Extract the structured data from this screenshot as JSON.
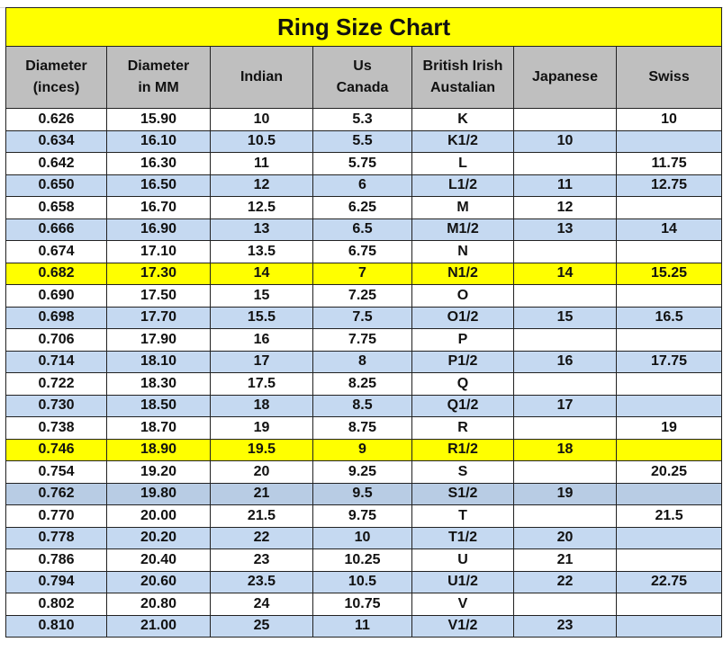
{
  "title": "Ring Size Chart",
  "colors": {
    "title_bg": "#ffff00",
    "header_bg": "#bfbfbf",
    "band_blue": "#c5d9f1",
    "highlight_yellow": "#ffff00"
  },
  "columns": [
    "Diameter\n(inces)",
    "Diameter\nin MM",
    "Indian",
    "Us\nCanada",
    "British Irish\nAustalian",
    "Japanese",
    "Swiss"
  ],
  "rows": [
    {
      "style": "white",
      "cells": [
        "0.626",
        "15.90",
        "10",
        "5.3",
        "K",
        "",
        "10"
      ]
    },
    {
      "style": "blue",
      "cells": [
        "0.634",
        "16.10",
        "10.5",
        "5.5",
        "K1/2",
        "10",
        ""
      ]
    },
    {
      "style": "white",
      "cells": [
        "0.642",
        "16.30",
        "11",
        "5.75",
        "L",
        "",
        "11.75"
      ]
    },
    {
      "style": "blue",
      "cells": [
        "0.650",
        "16.50",
        "12",
        "6",
        "L1/2",
        "11",
        "12.75"
      ]
    },
    {
      "style": "white",
      "cells": [
        "0.658",
        "16.70",
        "12.5",
        "6.25",
        "M",
        "12",
        ""
      ]
    },
    {
      "style": "blue",
      "cells": [
        "0.666",
        "16.90",
        "13",
        "6.5",
        "M1/2",
        "13",
        "14"
      ]
    },
    {
      "style": "white",
      "cells": [
        "0.674",
        "17.10",
        "13.5",
        "6.75",
        "N",
        "",
        ""
      ]
    },
    {
      "style": "yellow",
      "cells": [
        "0.682",
        "17.30",
        "14",
        "7",
        "N1/2",
        "14",
        "15.25"
      ]
    },
    {
      "style": "white",
      "cells": [
        "0.690",
        "17.50",
        "15",
        "7.25",
        "O",
        "",
        ""
      ]
    },
    {
      "style": "blue",
      "cells": [
        "0.698",
        "17.70",
        "15.5",
        "7.5",
        "O1/2",
        "15",
        "16.5"
      ]
    },
    {
      "style": "white",
      "cells": [
        "0.706",
        "17.90",
        "16",
        "7.75",
        "P",
        "",
        ""
      ]
    },
    {
      "style": "blue",
      "cells": [
        "0.714",
        "18.10",
        "17",
        "8",
        "P1/2",
        "16",
        "17.75"
      ]
    },
    {
      "style": "white",
      "cells": [
        "0.722",
        "18.30",
        "17.5",
        "8.25",
        "Q",
        "",
        ""
      ]
    },
    {
      "style": "blue",
      "cells": [
        "0.730",
        "18.50",
        "18",
        "8.5",
        "Q1/2",
        "17",
        ""
      ]
    },
    {
      "style": "white",
      "cells": [
        "0.738",
        "18.70",
        "19",
        "8.75",
        "R",
        "",
        "19"
      ]
    },
    {
      "style": "yellow",
      "cells": [
        "0.746",
        "18.90",
        "19.5",
        "9",
        "R1/2",
        "18",
        ""
      ]
    },
    {
      "style": "white",
      "cells": [
        "0.754",
        "19.20",
        "20",
        "9.25",
        "S",
        "",
        "20.25"
      ]
    },
    {
      "style": "blue-dark",
      "cells": [
        "0.762",
        "19.80",
        "21",
        "9.5",
        "S1/2",
        "19",
        ""
      ]
    },
    {
      "style": "white",
      "cells": [
        "0.770",
        "20.00",
        "21.5",
        "9.75",
        "T",
        "",
        "21.5"
      ]
    },
    {
      "style": "blue",
      "cells": [
        "0.778",
        "20.20",
        "22",
        "10",
        "T1/2",
        "20",
        ""
      ]
    },
    {
      "style": "white",
      "cells": [
        "0.786",
        "20.40",
        "23",
        "10.25",
        "U",
        "21",
        ""
      ]
    },
    {
      "style": "blue",
      "cells": [
        "0.794",
        "20.60",
        "23.5",
        "10.5",
        "U1/2",
        "22",
        "22.75"
      ]
    },
    {
      "style": "white",
      "cells": [
        "0.802",
        "20.80",
        "24",
        "10.75",
        "V",
        "",
        ""
      ]
    },
    {
      "style": "blue",
      "cells": [
        "0.810",
        "21.00",
        "25",
        "11",
        "V1/2",
        "23",
        ""
      ]
    }
  ]
}
